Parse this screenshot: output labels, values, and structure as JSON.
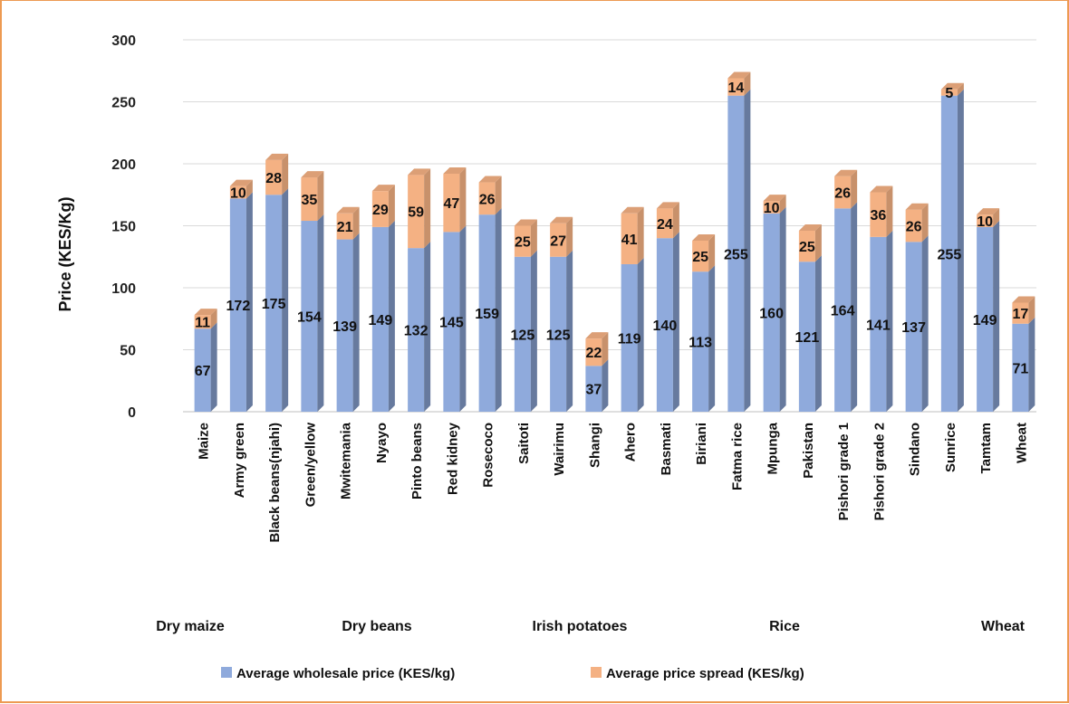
{
  "chart_data": {
    "type": "bar",
    "stacked": true,
    "ylabel": "Price (KES/Kg)",
    "ylim": [
      0,
      300
    ],
    "yticks": [
      0,
      50,
      100,
      150,
      200,
      250,
      300
    ],
    "grid": true,
    "legend_position": "bottom",
    "categories": [
      "Maize",
      "Army green",
      "Black beans(njahi)",
      "Green/yellow",
      "Mwitemania",
      "Nyayo",
      "Pinto beans",
      "Red kidney",
      "Rosecoco",
      "Saitoti",
      "Wairimu",
      "Shangi",
      "Ahero",
      "Basmati",
      "Biriani",
      "Fatma rice",
      "Mpunga",
      "Pakistan",
      "Pishori grade 1",
      "Pishori grade 2",
      "Sindano",
      "Sunrice",
      "Tamtam",
      "Wheat"
    ],
    "groups": [
      {
        "label": "Dry maize"
      },
      {
        "label": "Dry beans"
      },
      {
        "label": "Irish potatoes"
      },
      {
        "label": "Rice"
      },
      {
        "label": "Wheat"
      }
    ],
    "series": [
      {
        "name": "Average wholesale price (KES/kg)",
        "color": "#8faadc",
        "values": [
          67,
          172,
          175,
          154,
          139,
          149,
          132,
          145,
          159,
          125,
          125,
          37,
          119,
          140,
          113,
          255,
          160,
          121,
          164,
          141,
          137,
          255,
          149,
          71
        ]
      },
      {
        "name": "Average price spread (KES/kg)",
        "color": "#f4b183",
        "values": [
          11,
          10,
          28,
          35,
          21,
          29,
          59,
          47,
          26,
          25,
          27,
          22,
          41,
          24,
          25,
          14,
          10,
          25,
          26,
          36,
          26,
          5,
          10,
          17
        ]
      }
    ]
  }
}
